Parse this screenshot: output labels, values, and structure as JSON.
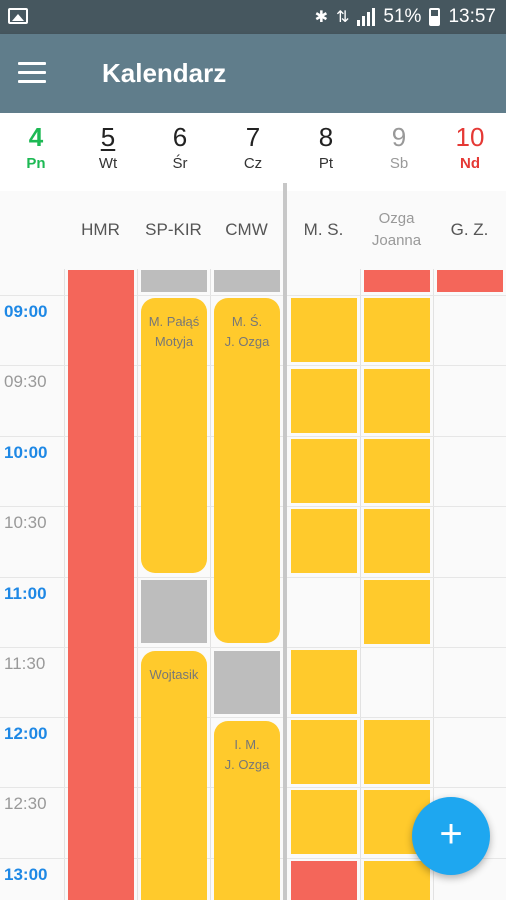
{
  "status_bar": {
    "battery": "51%",
    "time": "13:57"
  },
  "app_bar": {
    "title": "Kalendarz",
    "menu_icon": "hamburger-menu-icon"
  },
  "days": [
    {
      "num": "4",
      "name": "Pn",
      "color": "#1db954",
      "bold": true
    },
    {
      "num": "5",
      "name": "Wt",
      "color": "#222222",
      "underline": true
    },
    {
      "num": "6",
      "name": "Śr",
      "color": "#222222"
    },
    {
      "num": "7",
      "name": "Cz",
      "color": "#222222"
    },
    {
      "num": "8",
      "name": "Pt",
      "color": "#222222"
    },
    {
      "num": "9",
      "name": "Sb",
      "color": "#999999"
    },
    {
      "num": "10",
      "name": "Nd",
      "color": "#e53935",
      "bold": true
    }
  ],
  "columns": [
    "HMR",
    "SP-KIR",
    "CMW",
    "M. S.",
    "Ozga\nJoanna",
    "G. Z."
  ],
  "times": [
    "09:00",
    "09:30",
    "10:00",
    "10:30",
    "11:00",
    "11:30",
    "12:00",
    "12:30",
    "13:00"
  ],
  "events": {
    "sp_kir_1": "M. Pałąś\nMotyja",
    "cmw_1": "M. Ś.\nJ. Ozga",
    "sp_kir_2": "Wojtasik",
    "cmw_2": "I. M.\nJ. Ozga"
  },
  "fab_label": "+",
  "colors": {
    "appbar": "#607d8b",
    "statusbar": "#46575f",
    "accent": "#1ea7f0",
    "event_yellow": "#ffca2c",
    "event_red": "#f4665a",
    "event_gray": "#bdbdbd",
    "time_full": "#1e88e5"
  }
}
